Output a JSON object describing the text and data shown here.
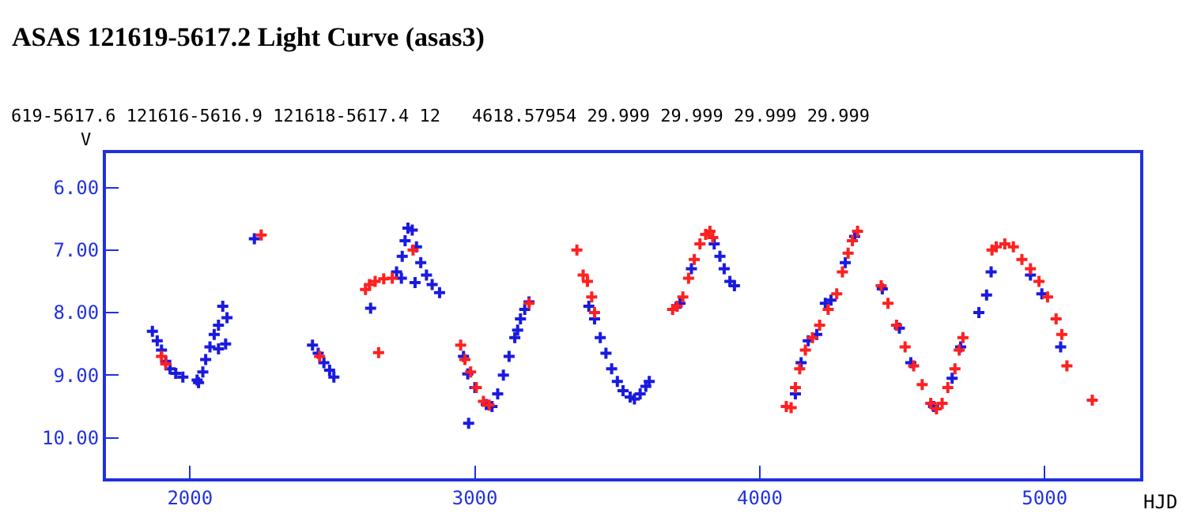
{
  "chart_data": {
    "type": "scatter",
    "title": "ASAS 121619-5617.2 Light Curve (asas3)",
    "subtitle": "619-5617.6 121616-5616.9 121618-5617.4 12   4618.57954 29.999 29.999 29.999 29.999",
    "xlabel": "HJD",
    "ylabel": "V",
    "xlim": [
      1705,
      5335
    ],
    "xticks": [
      2000,
      3000,
      4000,
      5000
    ],
    "ylim": [
      10.65,
      5.45
    ],
    "yticks": [
      {
        "value": 6,
        "label": "6.00"
      },
      {
        "value": 7,
        "label": "7.00"
      },
      {
        "value": 8,
        "label": "8.00"
      },
      {
        "value": 9,
        "label": "9.00"
      },
      {
        "value": 10,
        "label": "10.00"
      }
    ],
    "marker": "cross",
    "series": [
      {
        "color": "#1a1ae0",
        "x": [
          1868,
          1885,
          1900,
          1915,
          1930,
          1950,
          1975,
          2025,
          2030,
          2045,
          2055,
          2070,
          2085,
          2100,
          2115,
          2130,
          2125,
          2100,
          2226,
          2430,
          2450,
          2470,
          2490,
          2505,
          2634,
          2725,
          2742,
          2745,
          2755,
          2765,
          2780,
          2790,
          2795,
          2810,
          2830,
          2850,
          2876,
          2960,
          2975,
          2978,
          3000,
          3040,
          3060,
          3080,
          3100,
          3120,
          3140,
          3150,
          3160,
          3175,
          3190,
          3400,
          3420,
          3440,
          3460,
          3480,
          3500,
          3520,
          3545,
          3560,
          3580,
          3600,
          3612,
          3720,
          3760,
          3840,
          3860,
          3875,
          3895,
          3911,
          4125,
          4145,
          4170,
          4200,
          4230,
          4250,
          4300,
          4333,
          4430,
          4490,
          4530,
          4610,
          4675,
          4705,
          4769,
          4796,
          4812,
          4950,
          4990,
          5056
        ],
        "values": [
          8.3,
          8.45,
          8.6,
          8.78,
          8.9,
          8.97,
          9.03,
          9.08,
          9.12,
          8.95,
          8.75,
          8.55,
          8.35,
          8.2,
          7.9,
          8.08,
          8.5,
          8.58,
          6.82,
          8.52,
          8.65,
          8.8,
          8.92,
          9.03,
          7.93,
          7.35,
          7.45,
          7.1,
          6.85,
          6.65,
          6.68,
          7.52,
          6.95,
          7.2,
          7.4,
          7.55,
          7.68,
          8.7,
          8.98,
          9.77,
          9.2,
          9.47,
          9.5,
          9.3,
          9.0,
          8.7,
          8.4,
          8.28,
          8.1,
          7.95,
          7.83,
          7.9,
          8.1,
          8.4,
          8.65,
          8.9,
          9.1,
          9.25,
          9.35,
          9.38,
          9.3,
          9.18,
          9.1,
          7.85,
          7.3,
          6.9,
          7.1,
          7.3,
          7.5,
          7.57,
          9.3,
          8.8,
          8.45,
          8.35,
          7.85,
          7.8,
          7.2,
          6.78,
          7.62,
          8.25,
          8.8,
          9.5,
          9.05,
          8.55,
          8.0,
          7.72,
          7.35,
          7.4,
          7.7,
          8.55
        ]
      },
      {
        "color": "#ff2020",
        "x": [
          1900,
          1915,
          2250,
          2455,
          2616,
          2630,
          2650,
          2662,
          2680,
          2710,
          2783,
          2950,
          2965,
          2985,
          3005,
          3030,
          3050,
          3190,
          3358,
          3380,
          3395,
          3410,
          3420,
          3694,
          3710,
          3730,
          3750,
          3770,
          3790,
          3810,
          3825,
          3835,
          4093,
          4110,
          4125,
          4140,
          4160,
          4185,
          4210,
          4240,
          4270,
          4290,
          4310,
          4325,
          4343,
          4426,
          4450,
          4480,
          4510,
          4540,
          4570,
          4600,
          4620,
          4640,
          4660,
          4685,
          4700,
          4713,
          4815,
          4830,
          4860,
          4890,
          4920,
          4950,
          4980,
          5010,
          5040,
          5060,
          5078,
          5167
        ],
        "values": [
          8.7,
          8.82,
          6.76,
          8.7,
          7.63,
          7.55,
          7.5,
          8.64,
          7.46,
          7.45,
          7.0,
          8.52,
          8.75,
          8.95,
          9.2,
          9.42,
          9.48,
          7.85,
          7.0,
          7.4,
          7.5,
          7.75,
          8.0,
          7.95,
          7.9,
          7.75,
          7.45,
          7.15,
          6.9,
          6.75,
          6.7,
          6.8,
          9.5,
          9.52,
          9.2,
          8.9,
          8.6,
          8.4,
          8.2,
          7.95,
          7.7,
          7.35,
          7.05,
          6.85,
          6.7,
          7.57,
          7.85,
          8.2,
          8.55,
          8.85,
          9.15,
          9.45,
          9.54,
          9.45,
          9.2,
          8.9,
          8.6,
          8.4,
          7.0,
          6.95,
          6.9,
          6.95,
          7.15,
          7.3,
          7.5,
          7.75,
          8.1,
          8.35,
          8.85,
          9.4
        ]
      }
    ]
  }
}
